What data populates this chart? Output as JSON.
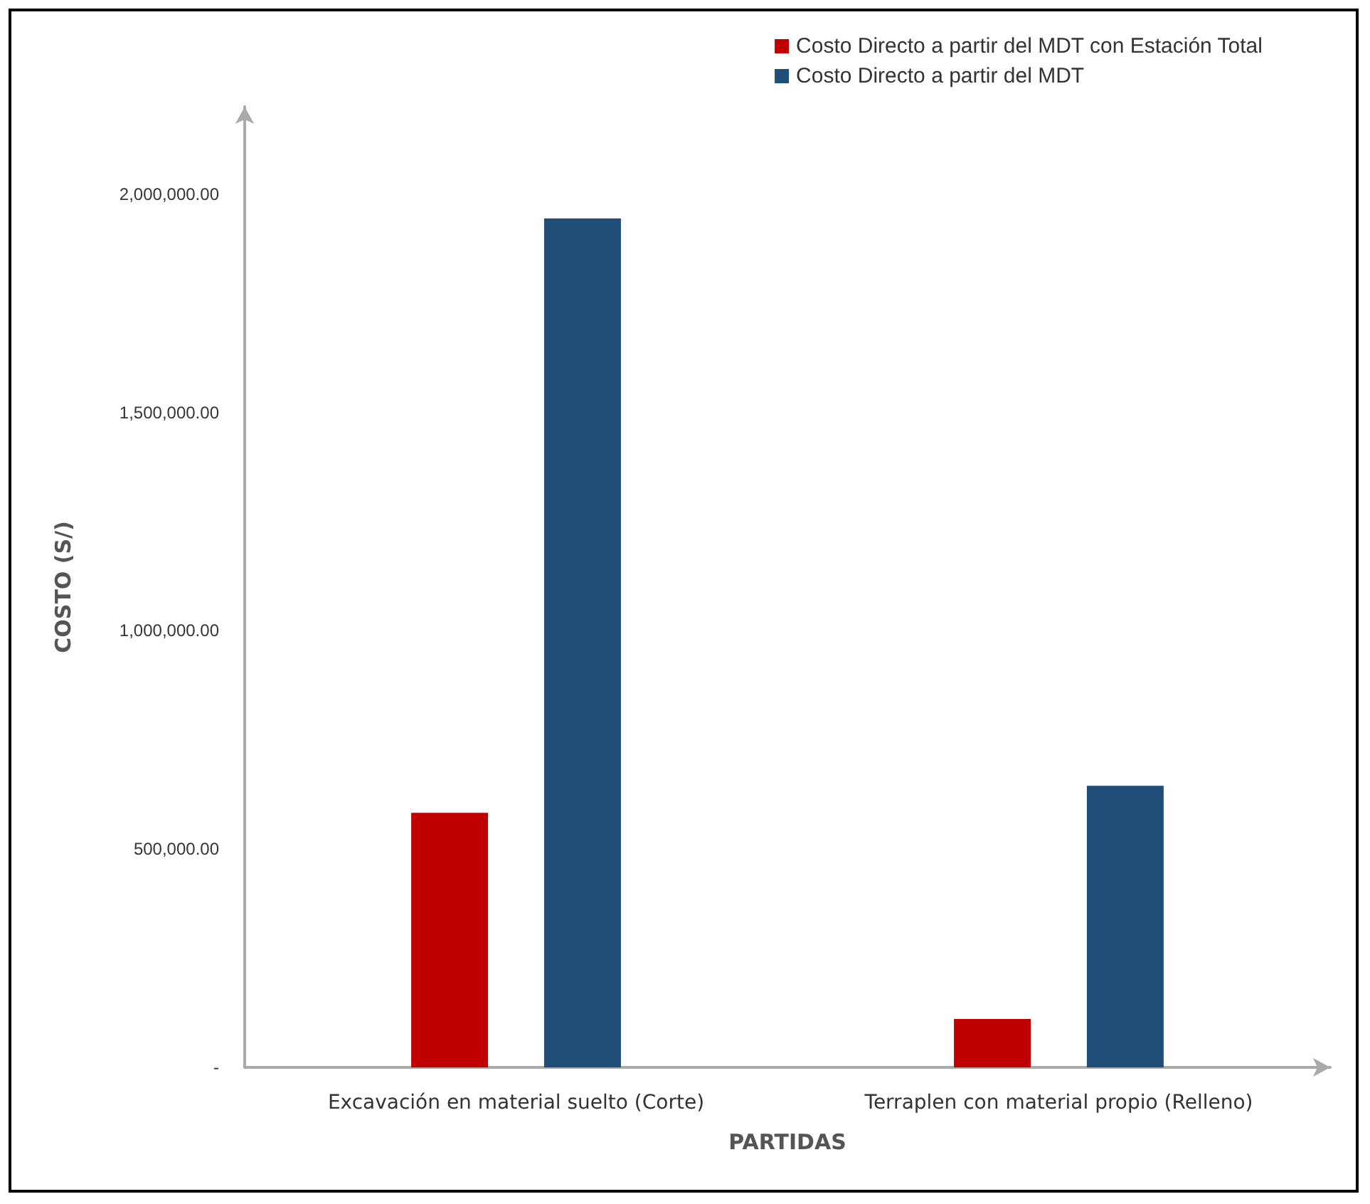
{
  "chart_data": {
    "type": "bar",
    "xlabel": "PARTIDAS",
    "ylabel": "COSTO (S/)",
    "categories": [
      "Excavación en material suelto (Corte)",
      "Terraplen con material propio (Relleno)"
    ],
    "series": [
      {
        "name": "Costo Directo a partir del MDT con Estación Total",
        "color": "#c00000",
        "values": [
          583000,
          111000
        ]
      },
      {
        "name": "Costo Directo a partir del MDT",
        "color": "#1f4e79",
        "values": [
          1944000,
          645000
        ]
      }
    ],
    "ylim": [
      0,
      2200000
    ],
    "yticks": [
      {
        "value": 0,
        "label": "-"
      },
      {
        "value": 500000,
        "label": "500,000.00"
      },
      {
        "value": 1000000,
        "label": "1,000,000.00"
      },
      {
        "value": 1500000,
        "label": "1,500,000.00"
      },
      {
        "value": 2000000,
        "label": "2,000,000.00"
      }
    ],
    "grid": false,
    "legend": "top right"
  }
}
